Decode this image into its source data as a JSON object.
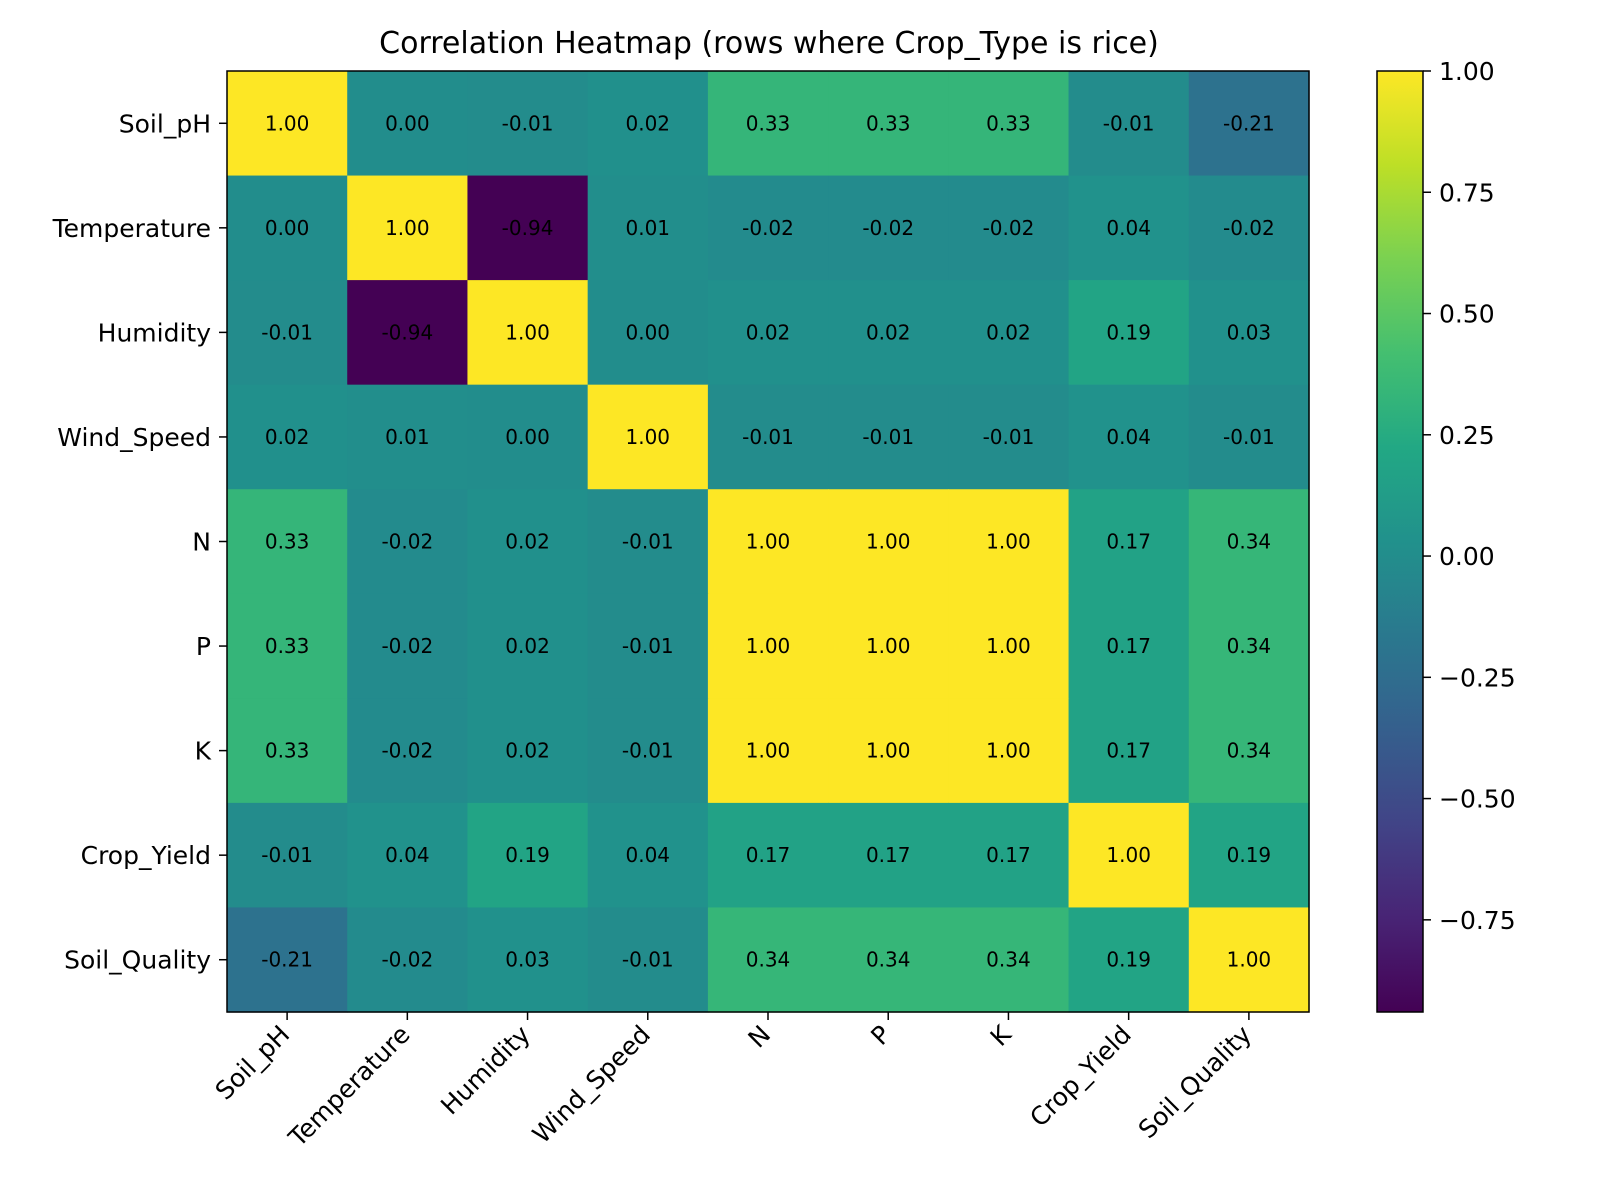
{
  "chart_data": {
    "type": "heatmap",
    "title": "Correlation Heatmap (rows where Crop_Type is rice)",
    "xlabel": "",
    "ylabel": "",
    "x_categories": [
      "Soil_pH",
      "Temperature",
      "Humidity",
      "Wind_Speed",
      "N",
      "P",
      "K",
      "Crop_Yield",
      "Soil_Quality"
    ],
    "y_categories": [
      "Soil_pH",
      "Temperature",
      "Humidity",
      "Wind_Speed",
      "N",
      "P",
      "K",
      "Crop_Yield",
      "Soil_Quality"
    ],
    "values": [
      [
        1.0,
        0.0,
        -0.01,
        0.02,
        0.33,
        0.33,
        0.33,
        -0.01,
        -0.21
      ],
      [
        0.0,
        1.0,
        -0.94,
        0.01,
        -0.02,
        -0.02,
        -0.02,
        0.04,
        -0.02
      ],
      [
        -0.01,
        -0.94,
        1.0,
        0.0,
        0.02,
        0.02,
        0.02,
        0.19,
        0.03
      ],
      [
        0.02,
        0.01,
        0.0,
        1.0,
        -0.01,
        -0.01,
        -0.01,
        0.04,
        -0.01
      ],
      [
        0.33,
        -0.02,
        0.02,
        -0.01,
        1.0,
        1.0,
        1.0,
        0.17,
        0.34
      ],
      [
        0.33,
        -0.02,
        0.02,
        -0.01,
        1.0,
        1.0,
        1.0,
        0.17,
        0.34
      ],
      [
        0.33,
        -0.02,
        0.02,
        -0.01,
        1.0,
        1.0,
        1.0,
        0.17,
        0.34
      ],
      [
        -0.01,
        0.04,
        0.19,
        0.04,
        0.17,
        0.17,
        0.17,
        1.0,
        0.19
      ],
      [
        -0.21,
        -0.02,
        0.03,
        -0.01,
        0.34,
        0.34,
        0.34,
        0.19,
        1.0
      ]
    ],
    "value_format": "0.00",
    "colormap": "viridis",
    "color_range": [
      -0.94,
      1.0
    ],
    "colorbar_ticks": [
      "1.00",
      "0.75",
      "0.50",
      "0.25",
      "0.00",
      "−0.25",
      "−0.50",
      "−0.75"
    ],
    "colorbar_tick_values": [
      1.0,
      0.75,
      0.5,
      0.25,
      0.0,
      -0.25,
      -0.5,
      -0.75
    ],
    "grid": false,
    "legend": "colorbar-right"
  }
}
